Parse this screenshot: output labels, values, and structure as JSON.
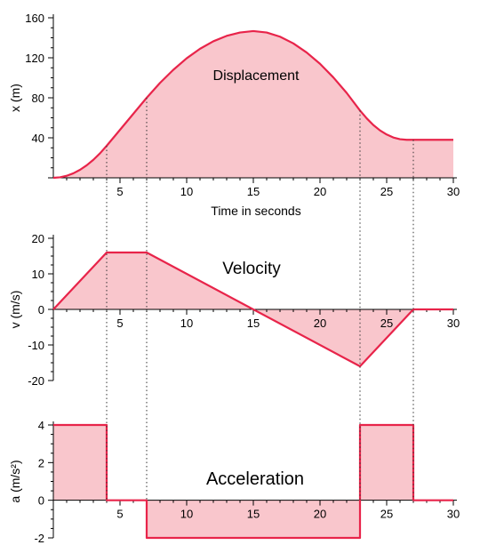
{
  "colors": {
    "fill": "#f9c6cc",
    "line": "#e8244a",
    "axis": "#000000",
    "guide": "#333333"
  },
  "chart_data": [
    {
      "type": "area",
      "title": "Displacement",
      "xlabel": "Time in seconds",
      "ylabel": "x (m)",
      "xlim": [
        0,
        30
      ],
      "ylim": [
        0,
        160
      ],
      "xticks": [
        5,
        10,
        15,
        20,
        25,
        30
      ],
      "yticks": [
        40,
        80,
        120,
        160
      ],
      "x": [
        0,
        0.5,
        1,
        1.5,
        2,
        2.5,
        3,
        3.5,
        4,
        5,
        6,
        7,
        8,
        9,
        10,
        11,
        12,
        13,
        14,
        15,
        16,
        17,
        18,
        19,
        20,
        21,
        22,
        23,
        23.5,
        24,
        24.5,
        25,
        25.5,
        26,
        26.5,
        27,
        28,
        29,
        30
      ],
      "y": [
        0,
        0.5,
        2,
        4.5,
        8,
        12.5,
        18,
        24.5,
        32,
        48,
        64,
        80,
        94.9,
        108,
        119.5,
        129,
        136.5,
        141.9,
        145.3,
        146.7,
        145.3,
        141.1,
        134.4,
        125.3,
        114,
        100.4,
        84.9,
        67.3,
        59.5,
        52.8,
        47.4,
        43.3,
        40.3,
        38.6,
        38.0,
        38.0,
        38.0,
        38.0,
        38.0
      ]
    },
    {
      "type": "area",
      "title": "Velocity",
      "xlabel": "",
      "ylabel": "v (m/s)",
      "xlim": [
        0,
        30
      ],
      "ylim": [
        -20,
        20
      ],
      "xticks": [
        5,
        10,
        15,
        20,
        25,
        30
      ],
      "yticks": [
        -20,
        -10,
        0,
        10,
        20
      ],
      "x": [
        0,
        4,
        7,
        23,
        27,
        30
      ],
      "y": [
        0,
        16,
        16,
        -16,
        0,
        0
      ]
    },
    {
      "type": "area",
      "title": "Acceleration",
      "xlabel": "",
      "ylabel": "a (m/s²)",
      "xlim": [
        0,
        30
      ],
      "ylim": [
        -2,
        4
      ],
      "xticks": [
        5,
        10,
        15,
        20,
        25,
        30
      ],
      "yticks": [
        -2,
        0,
        2,
        4
      ],
      "x": [
        0,
        4,
        4,
        7,
        7,
        23,
        23,
        27,
        27,
        30
      ],
      "y": [
        4,
        4,
        0,
        0,
        -2,
        -2,
        4,
        4,
        0,
        0
      ]
    }
  ],
  "guide_times": [
    4,
    7,
    23,
    27
  ]
}
